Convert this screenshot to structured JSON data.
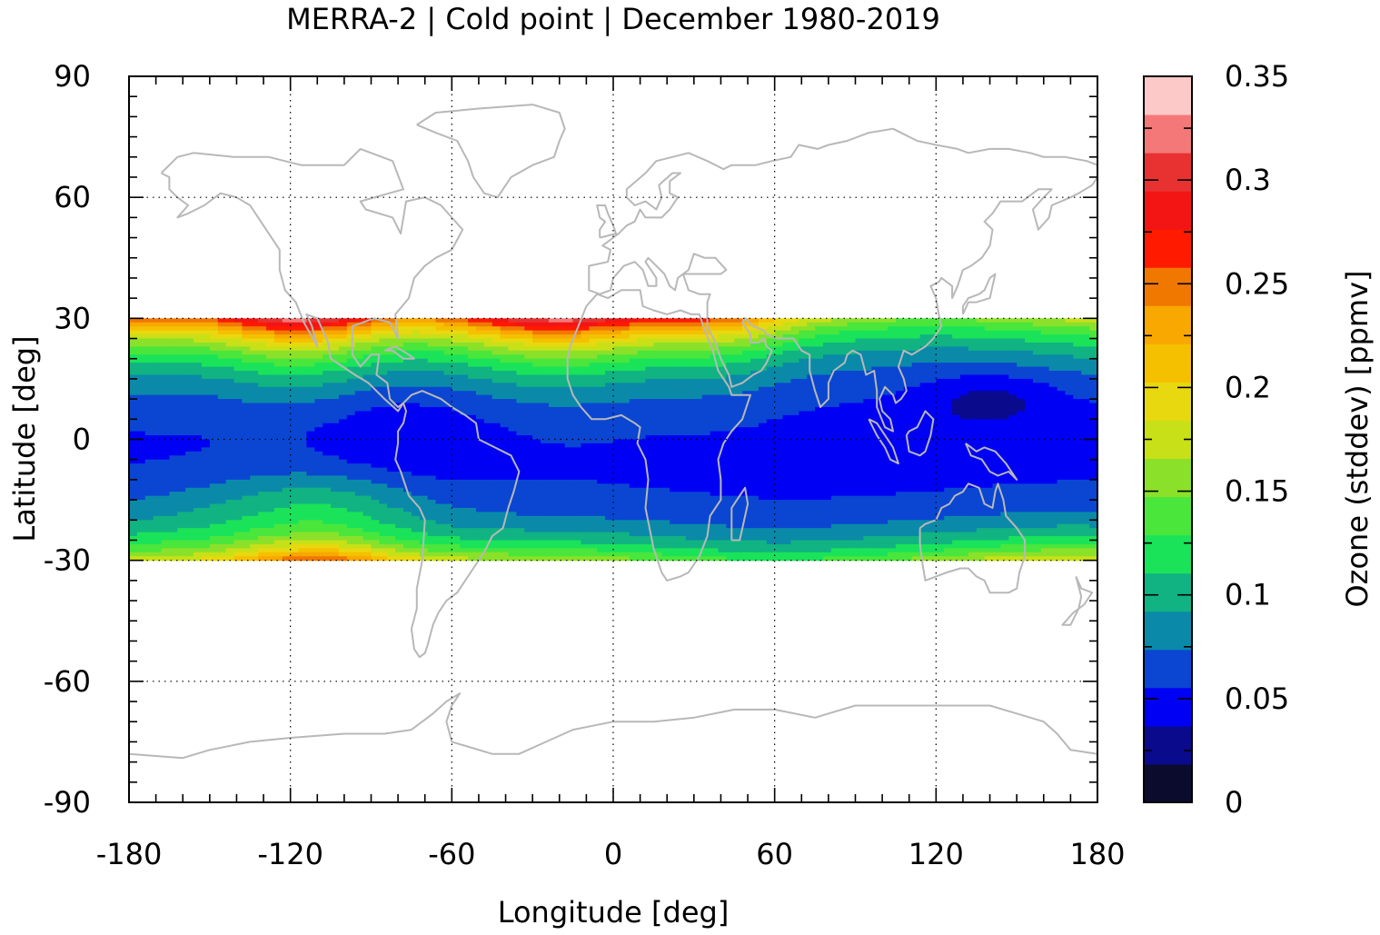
{
  "chart_data": {
    "type": "heatmap",
    "title": "MERRA-2 | Cold point | December 1980-2019",
    "xlabel": "Longitude [deg]",
    "ylabel": "Latitude [deg]",
    "colorbar_label": "Ozone (stddev) [ppmv]",
    "xlim": [
      -180,
      180
    ],
    "ylim": [
      -90,
      90
    ],
    "x_ticks": [
      "-180",
      "-120",
      "-60",
      "0",
      "60",
      "120",
      "180"
    ],
    "y_ticks": [
      "90",
      "60",
      "30",
      "0",
      "-30",
      "-60",
      "-90"
    ],
    "x_tick_values": [
      -180,
      -120,
      -60,
      0,
      60,
      120,
      180
    ],
    "y_tick_values": [
      90,
      60,
      30,
      0,
      -30,
      -60,
      -90
    ],
    "colorbar_ticks": [
      "0",
      "0.05",
      "0.1",
      "0.15",
      "0.2",
      "0.25",
      "0.3",
      "0.35"
    ],
    "colorbar_tick_values": [
      0,
      0.05,
      0.1,
      0.15,
      0.2,
      0.25,
      0.3,
      0.35
    ],
    "colorbar_range": [
      0,
      0.35
    ],
    "data_lat_range": [
      -30,
      30
    ],
    "grid": true,
    "colormap": [
      "#0b0b2e",
      "#0a0a8c",
      "#0000f5",
      "#0a46d2",
      "#0a8aa8",
      "#11b382",
      "#1ae35a",
      "#4ae63c",
      "#8be12a",
      "#c8e018",
      "#e8d810",
      "#f5c000",
      "#f8a800",
      "#f07800",
      "#ff1a00",
      "#f31414",
      "#e83232",
      "#f47878",
      "#fcc8c8"
    ],
    "field_description_values": {
      "equatorial_minimum_region_lon": [
        120,
        160
      ],
      "equatorial_minimum_region_lat": [
        5,
        15
      ],
      "equatorial_minimum_value": 0.015,
      "north_edge_maximum_lon": [
        -135,
        -100
      ],
      "north_edge_maximum_value": 0.3,
      "south_edge_maximum_lon": [
        -125,
        -95
      ],
      "south_edge_maximum_value": 0.22
    }
  }
}
